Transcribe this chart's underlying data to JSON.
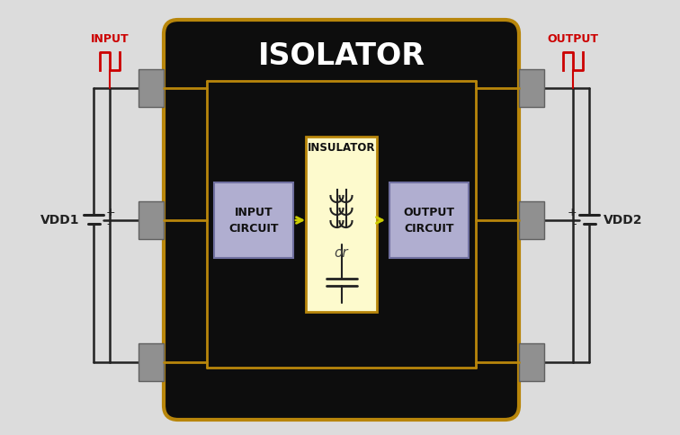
{
  "bg_color": "#dcdcdc",
  "ic_bg": "#0d0d0d",
  "ic_border": "#b8860b",
  "pin_color": "#909090",
  "pin_ec": "#606060",
  "circuit_box_color": "#b0aed0",
  "circuit_box_ec": "#7070a0",
  "insulator_box_color": "#fdfacd",
  "insulator_border": "#b8860b",
  "arrow_color": "#cccc00",
  "wire_color": "#222222",
  "title": "ISOLATOR",
  "title_color": "#ffffff",
  "title_fontsize": 24,
  "input_label": "INPUT",
  "output_label": "OUTPUT",
  "signal_color": "#cc0000",
  "vdd1_label": "VDD1",
  "vdd2_label": "VDD2",
  "insulator_label": "INSULATOR",
  "or_label": "or",
  "input_circuit_label": "INPUT\nCIRCUIT",
  "output_circuit_label": "OUTPUT\nCIRCUIT",
  "gold_lw": 2.0,
  "wire_lw": 1.8,
  "pin_lw": 1.0,
  "ic_lw": 3.0
}
